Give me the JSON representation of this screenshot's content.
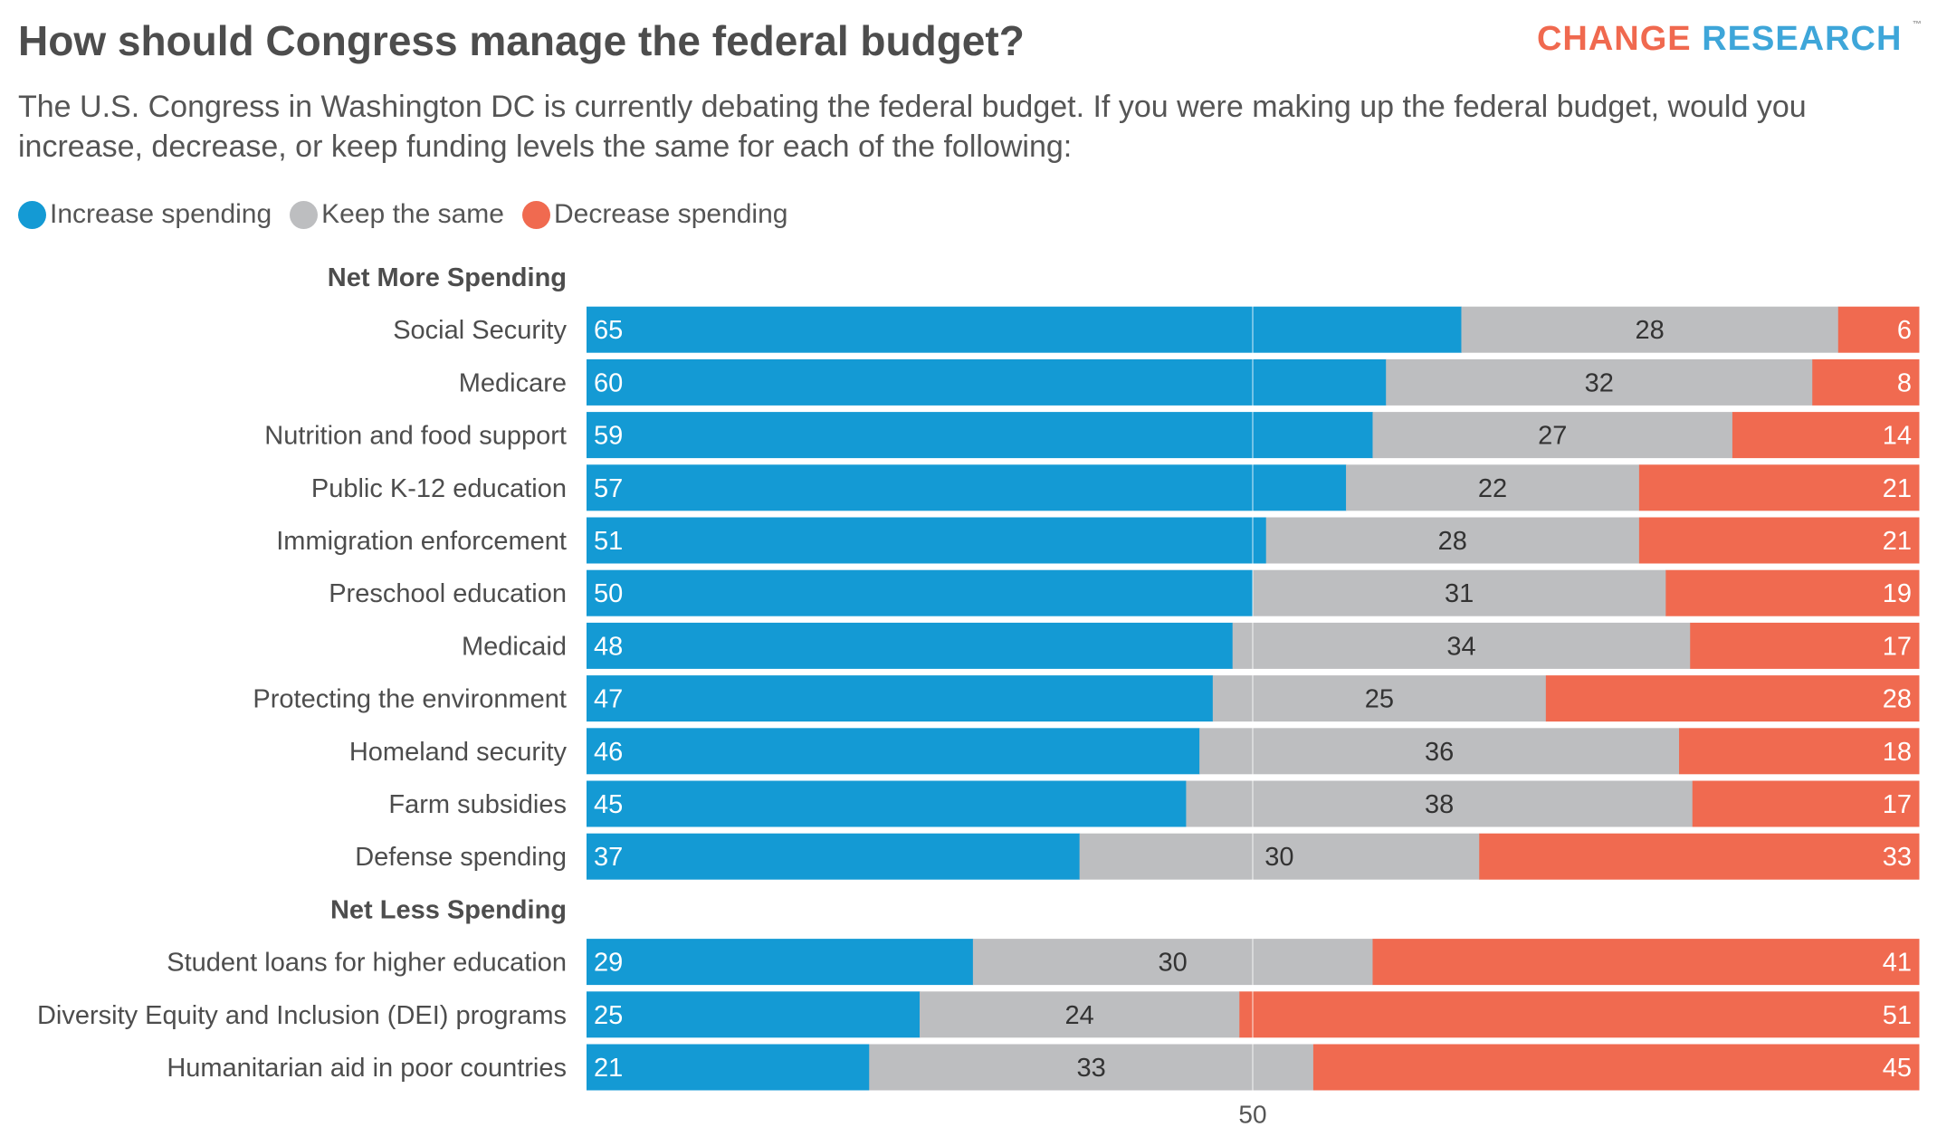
{
  "title": "How should Congress manage the federal budget?",
  "brand": {
    "part1": "CHANGE",
    "part2": "RESEARCH",
    "tm": "™"
  },
  "subtitle": "The U.S. Congress in Washington DC is currently debating the federal budget. If you were making up the federal budget, would you increase, decrease, or keep funding levels the same for each of the following:",
  "legend": [
    {
      "label": "Increase spending",
      "color": "#149ad4"
    },
    {
      "label": "Keep the same",
      "color": "#bdbec0"
    },
    {
      "label": "Decrease spending",
      "color": "#f06a50"
    }
  ],
  "chart_data": {
    "type": "bar",
    "orientation": "horizontal",
    "stacked": true,
    "xlim": [
      0,
      100
    ],
    "reference_line": 50,
    "xtick_labels": [
      "50"
    ],
    "groups": [
      {
        "label": "Net More Spending",
        "categories": [
          "Social Security",
          "Medicare",
          "Nutrition and food support",
          "Public K-12 education",
          "Immigration enforcement",
          "Preschool education",
          "Medicaid",
          "Protecting the environment",
          "Homeland security",
          "Farm subsidies",
          "Defense spending"
        ],
        "increase": [
          65,
          60,
          59,
          57,
          51,
          50,
          48,
          47,
          46,
          45,
          37
        ],
        "same": [
          28,
          32,
          27,
          22,
          28,
          31,
          34,
          25,
          36,
          38,
          30
        ],
        "decrease": [
          6,
          8,
          14,
          21,
          21,
          19,
          17,
          28,
          18,
          17,
          33
        ]
      },
      {
        "label": "Net Less Spending",
        "categories": [
          "Student loans for higher education",
          "Diversity Equity and Inclusion (DEI) programs",
          "Humanitarian aid in poor countries"
        ],
        "increase": [
          29,
          25,
          21
        ],
        "same": [
          30,
          24,
          33
        ],
        "decrease": [
          41,
          51,
          45
        ]
      }
    ],
    "series": [
      {
        "name": "Increase spending",
        "color": "#149ad4"
      },
      {
        "name": "Keep the same",
        "color": "#bdbec0"
      },
      {
        "name": "Decrease spending",
        "color": "#f06a50"
      }
    ]
  }
}
